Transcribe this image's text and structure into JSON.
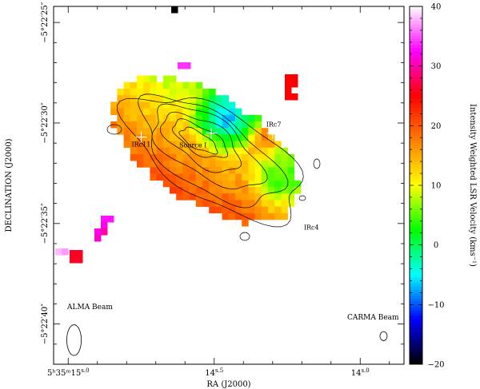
{
  "chart_data": {
    "type": "heatmap",
    "title": "",
    "xlabel": "RA (J2000)",
    "ylabel": "DECLINATION (J2000)",
    "colorbar_label": "Intensity Weighted LSR Velocity (kms⁻¹)",
    "colorbar_range": [
      -20,
      40
    ],
    "colorbar_ticks": [
      -20,
      -10,
      0,
      10,
      20,
      30,
      40
    ],
    "colorbar_tick_labels": [
      "−20",
      "−10",
      "0",
      "10",
      "20",
      "30",
      "40"
    ],
    "x_ticks": [
      {
        "value": 15.0,
        "label_main": "5ʰ35ᵐ",
        "label_sec": "15",
        "label_frac": "s.0"
      },
      {
        "value": 14.5,
        "label_main": "",
        "label_sec": "14",
        "label_frac": "s.5"
      },
      {
        "value": 14.0,
        "label_main": "",
        "label_sec": "14",
        "label_frac": "s.0"
      }
    ],
    "y_ticks": [
      {
        "value": 25,
        "label": "−5°22′25″"
      },
      {
        "value": 30,
        "label": "−5°22′30″"
      },
      {
        "value": 35,
        "label": "−5°22′35″"
      },
      {
        "value": 40,
        "label": "−5°22′40″"
      }
    ],
    "xlim": [
      15.05,
      13.85
    ],
    "ylim": [
      24.2,
      42.0
    ],
    "grid": false,
    "color_scheme": [
      "#000000",
      "#0000ff",
      "#00ffff",
      "#00ff00",
      "#ffff00",
      "#ff7f00",
      "#ff0000",
      "#ff00ff",
      "#ffffff"
    ],
    "sources": [
      {
        "label": "IRc11",
        "ra": 14.75,
        "dec": 30.7
      },
      {
        "label": "Source I",
        "ra": 14.51,
        "dec": 30.5
      },
      {
        "label": "IRc7",
        "ra": 14.3,
        "dec": 30.5
      },
      {
        "label": "IRc4",
        "ra": 14.16,
        "dec": 34.9
      }
    ],
    "beams": [
      {
        "label": "ALMA Beam",
        "ra": 14.98,
        "dec": 40.8,
        "major_arcsec": 1.7,
        "minor_arcsec": 0.8
      },
      {
        "label": "CARMA Beam",
        "ra": 13.92,
        "dec": 40.6,
        "major_arcsec": 0.5,
        "minor_arcsec": 0.4
      }
    ]
  }
}
